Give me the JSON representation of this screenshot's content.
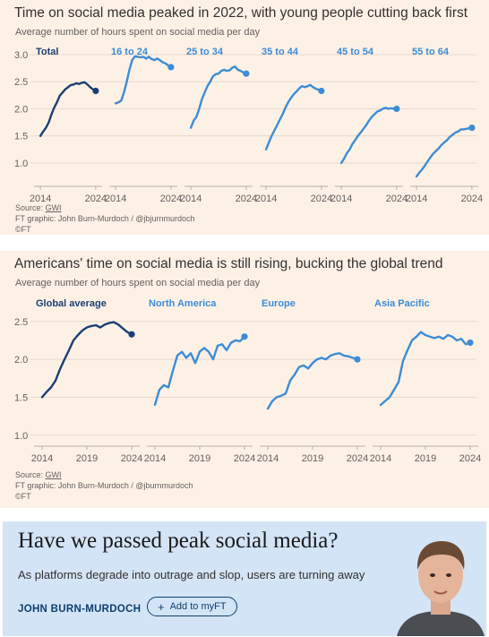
{
  "chart_data": [
    {
      "type": "line",
      "title": "Time on social media peaked in 2022, with young people cutting back first",
      "subtitle": "Average number of hours spent on social media per day",
      "source_label": "Source:",
      "source_name": "GWI",
      "credit": "FT graphic: John Burn-Murdoch / @jbjurnmurdoch",
      "copyright": "©FT",
      "ylim": [
        0.7,
        3.05
      ],
      "yticks": [
        "3.0",
        "2.5",
        "2.0",
        "1.5",
        "1.0"
      ],
      "ytick_values": [
        3.0,
        2.5,
        2.0,
        1.5,
        1.0
      ],
      "xlim": [
        2013.5,
        2024.5
      ],
      "xtick_labels": [
        "2014",
        "2024"
      ],
      "xtick_values": [
        2014,
        2024
      ],
      "grid": true,
      "series": [
        {
          "name": "Total",
          "color": "#1b3f73",
          "x": [
            2014,
            2014.5,
            2015,
            2015.5,
            2016,
            2016.5,
            2017,
            2017.5,
            2018,
            2018.5,
            2019,
            2019.5,
            2020,
            2020.5,
            2021,
            2021.5,
            2022,
            2022.5,
            2023,
            2023.5,
            2024
          ],
          "values": [
            1.5,
            1.58,
            1.65,
            1.75,
            1.9,
            2.02,
            2.12,
            2.24,
            2.3,
            2.36,
            2.4,
            2.44,
            2.45,
            2.47,
            2.46,
            2.48,
            2.49,
            2.45,
            2.4,
            2.36,
            2.33
          ]
        },
        {
          "name": "16 to 24",
          "color": "#3d8cd4",
          "x": [
            2014,
            2014.5,
            2015,
            2015.5,
            2016,
            2016.5,
            2017,
            2017.5,
            2018,
            2018.5,
            2019,
            2019.5,
            2020,
            2020.5,
            2021,
            2021.5,
            2022,
            2022.5,
            2023,
            2023.5,
            2024
          ],
          "values": [
            2.1,
            2.12,
            2.15,
            2.3,
            2.5,
            2.72,
            2.9,
            2.97,
            2.96,
            2.95,
            2.96,
            2.93,
            2.96,
            2.92,
            2.9,
            2.93,
            2.9,
            2.86,
            2.84,
            2.8,
            2.77
          ]
        },
        {
          "name": "25 to 34",
          "color": "#3d8cd4",
          "x": [
            2014,
            2014.5,
            2015,
            2015.5,
            2016,
            2016.5,
            2017,
            2017.5,
            2018,
            2018.5,
            2019,
            2019.5,
            2020,
            2020.5,
            2021,
            2021.5,
            2022,
            2022.5,
            2023,
            2023.5,
            2024
          ],
          "values": [
            1.65,
            1.78,
            1.85,
            2.0,
            2.18,
            2.3,
            2.42,
            2.5,
            2.6,
            2.64,
            2.65,
            2.7,
            2.72,
            2.7,
            2.71,
            2.76,
            2.78,
            2.72,
            2.7,
            2.67,
            2.65
          ]
        },
        {
          "name": "35 to 44",
          "color": "#3d8cd4",
          "x": [
            2014,
            2014.5,
            2015,
            2015.5,
            2016,
            2016.5,
            2017,
            2017.5,
            2018,
            2018.5,
            2019,
            2019.5,
            2020,
            2020.5,
            2021,
            2021.5,
            2022,
            2022.5,
            2023,
            2023.5,
            2024
          ],
          "values": [
            1.25,
            1.38,
            1.5,
            1.6,
            1.7,
            1.8,
            1.9,
            2.02,
            2.12,
            2.2,
            2.27,
            2.32,
            2.38,
            2.42,
            2.4,
            2.42,
            2.44,
            2.4,
            2.37,
            2.35,
            2.33
          ]
        },
        {
          "name": "45 to 54",
          "color": "#3d8cd4",
          "x": [
            2014,
            2014.5,
            2015,
            2015.5,
            2016,
            2016.5,
            2017,
            2017.5,
            2018,
            2018.5,
            2019,
            2019.5,
            2020,
            2020.5,
            2021,
            2021.5,
            2022,
            2022.5,
            2023,
            2023.5,
            2024
          ],
          "values": [
            1.0,
            1.08,
            1.18,
            1.25,
            1.35,
            1.42,
            1.5,
            1.56,
            1.63,
            1.7,
            1.78,
            1.85,
            1.9,
            1.95,
            1.97,
            2.0,
            2.02,
            2.0,
            2.01,
            2.0,
            2.0
          ]
        },
        {
          "name": "55 to 64",
          "color": "#3d8cd4",
          "x": [
            2014,
            2014.5,
            2015,
            2015.5,
            2016,
            2016.5,
            2017,
            2017.5,
            2018,
            2018.5,
            2019,
            2019.5,
            2020,
            2020.5,
            2021,
            2021.5,
            2022,
            2022.5,
            2023,
            2023.5,
            2024
          ],
          "values": [
            0.75,
            0.82,
            0.88,
            0.95,
            1.03,
            1.1,
            1.17,
            1.22,
            1.27,
            1.33,
            1.38,
            1.42,
            1.48,
            1.52,
            1.56,
            1.58,
            1.62,
            1.62,
            1.63,
            1.64,
            1.65
          ]
        }
      ]
    },
    {
      "type": "line",
      "title": "Americans' time on social media is still rising, bucking the global trend",
      "subtitle": "Average number of hours spent on social media per day",
      "source_label": "Source:",
      "source_name": "GWI",
      "credit": "FT graphic: John Burn-Murdoch / @jburnmurdoch",
      "copyright": "©FT",
      "ylim": [
        0.95,
        2.58
      ],
      "yticks": [
        "2.5",
        "2.0",
        "1.5",
        "1.0"
      ],
      "ytick_values": [
        2.5,
        2.0,
        1.5,
        1.0
      ],
      "xlim": [
        2013.5,
        2024.5
      ],
      "xtick_labels": [
        "2014",
        "2019",
        "2024"
      ],
      "xtick_values": [
        2014,
        2019,
        2024
      ],
      "grid": true,
      "series": [
        {
          "name": "Global average",
          "color": "#1b3f73",
          "x": [
            2014,
            2014.5,
            2015,
            2015.5,
            2016,
            2016.5,
            2017,
            2017.5,
            2018,
            2018.5,
            2019,
            2019.5,
            2020,
            2020.5,
            2021,
            2021.5,
            2022,
            2022.5,
            2023,
            2023.5,
            2024
          ],
          "values": [
            1.5,
            1.57,
            1.63,
            1.72,
            1.87,
            2.0,
            2.12,
            2.25,
            2.32,
            2.38,
            2.42,
            2.44,
            2.45,
            2.42,
            2.46,
            2.48,
            2.49,
            2.46,
            2.41,
            2.36,
            2.33
          ]
        },
        {
          "name": "North America",
          "color": "#3d8cd4",
          "x": [
            2014,
            2014.5,
            2015,
            2015.5,
            2016,
            2016.5,
            2017,
            2017.5,
            2018,
            2018.5,
            2019,
            2019.5,
            2020,
            2020.5,
            2021,
            2021.5,
            2022,
            2022.5,
            2023,
            2023.5,
            2024
          ],
          "values": [
            1.4,
            1.6,
            1.66,
            1.63,
            1.85,
            2.05,
            2.1,
            2.02,
            2.08,
            1.95,
            2.1,
            2.15,
            2.1,
            2.0,
            2.18,
            2.2,
            2.12,
            2.22,
            2.25,
            2.24,
            2.3
          ]
        },
        {
          "name": "Europe",
          "color": "#3d8cd4",
          "x": [
            2014,
            2014.5,
            2015,
            2015.5,
            2016,
            2016.5,
            2017,
            2017.5,
            2018,
            2018.5,
            2019,
            2019.5,
            2020,
            2020.5,
            2021,
            2021.5,
            2022,
            2022.5,
            2023,
            2023.5,
            2024
          ],
          "values": [
            1.35,
            1.45,
            1.5,
            1.52,
            1.55,
            1.72,
            1.8,
            1.9,
            1.92,
            1.88,
            1.95,
            2.0,
            2.02,
            2.0,
            2.05,
            2.07,
            2.08,
            2.05,
            2.04,
            2.02,
            2.0
          ]
        },
        {
          "name": "Asia Pacific",
          "color": "#3d8cd4",
          "x": [
            2014,
            2014.5,
            2015,
            2015.5,
            2016,
            2016.5,
            2017,
            2017.5,
            2018,
            2018.5,
            2019,
            2019.5,
            2020,
            2020.5,
            2021,
            2021.5,
            2022,
            2022.5,
            2023,
            2023.5,
            2024
          ],
          "values": [
            1.4,
            1.45,
            1.5,
            1.6,
            1.7,
            1.98,
            2.12,
            2.25,
            2.3,
            2.36,
            2.32,
            2.3,
            2.28,
            2.3,
            2.27,
            2.32,
            2.3,
            2.25,
            2.27,
            2.2,
            2.22
          ]
        }
      ]
    }
  ],
  "banner": {
    "headline": "Have we passed peak social media?",
    "standfirst": "As platforms degrade into outrage and slop, users are turning away",
    "author": "JOHN BURN-MURDOCH",
    "follow_label": "Add to myFT",
    "follow_icon": "+"
  }
}
